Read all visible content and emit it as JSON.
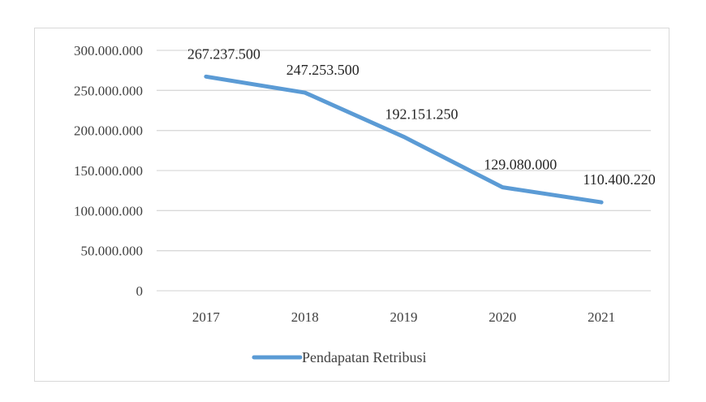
{
  "chart_data": {
    "type": "line",
    "categories": [
      "2017",
      "2018",
      "2019",
      "2020",
      "2021"
    ],
    "series": [
      {
        "name": "Pendapatan Retribusi",
        "values": [
          267237500,
          247253500,
          192151250,
          129080000,
          110400220
        ],
        "data_labels": [
          "267.237.500",
          "247.253.500",
          "192.151.250",
          "129.080.000",
          "110.400.220"
        ],
        "color": "#5b9bd5"
      }
    ],
    "yticks": [
      0,
      50000000,
      100000000,
      150000000,
      200000000,
      250000000,
      300000000
    ],
    "ytick_labels": [
      "0",
      "50.000.000",
      "100.000.000",
      "150.000.000",
      "200.000.000",
      "250.000.000",
      "300.000.000"
    ],
    "ylim": [
      0,
      300000000
    ],
    "grid": true,
    "legend_position": "bottom",
    "gridline_color": "#d9d9d9"
  }
}
